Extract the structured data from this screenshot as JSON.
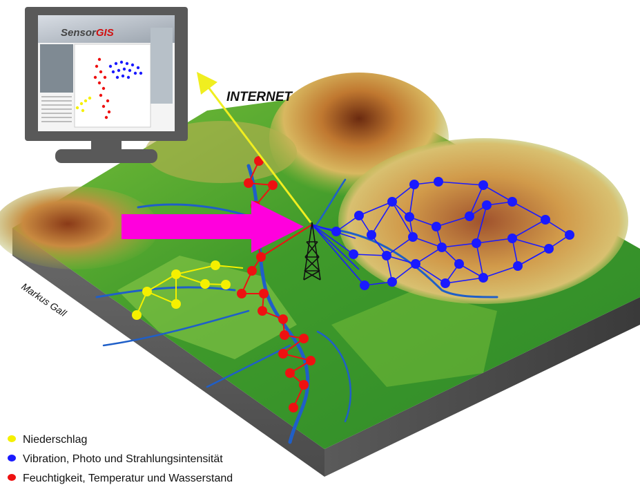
{
  "monitor": {
    "logo_prefix": "Sensor",
    "logo_suffix": "GIS"
  },
  "labels": {
    "internet": "INTERNET",
    "author": "Markus Gall"
  },
  "legend": [
    {
      "color": "#f5f000",
      "label": "Niederschlag"
    },
    {
      "color": "#1a1aff",
      "label": "Vibration, Photo und Strahlungsintensität"
    },
    {
      "color": "#ee1111",
      "label": "Feuchtigkeit, Temperatur und Wasserstand"
    }
  ],
  "colors": {
    "precipitation": "#f5f000",
    "vibration": "#1a1aff",
    "humidity": "#ee1111",
    "arrow": "#ff00dd",
    "internet_arrow": "#f0ee20",
    "river": "#1f5fc8",
    "terrain_low": "#3aa02a",
    "terrain_mid": "#c8a040",
    "terrain_high": "#8a3a18"
  }
}
